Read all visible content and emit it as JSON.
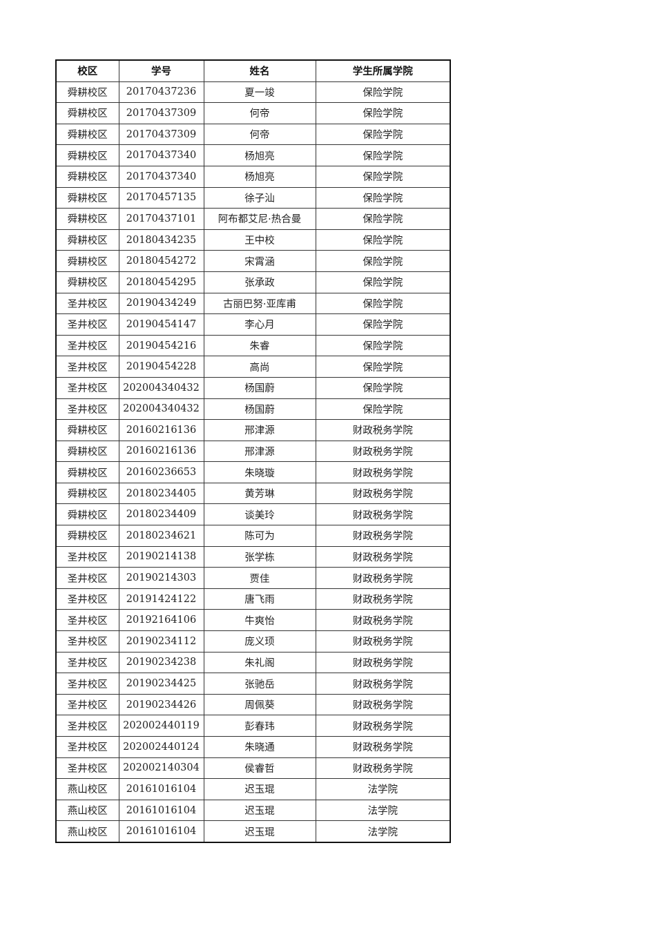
{
  "table": {
    "headers": [
      "校区",
      "学号",
      "姓名",
      "学生所属学院"
    ],
    "rows": [
      [
        "舜耕校区",
        "20170437236",
        "夏一竣",
        "保险学院"
      ],
      [
        "舜耕校区",
        "20170437309",
        "何帝",
        "保险学院"
      ],
      [
        "舜耕校区",
        "20170437309",
        "何帝",
        "保险学院"
      ],
      [
        "舜耕校区",
        "20170437340",
        "杨旭亮",
        "保险学院"
      ],
      [
        "舜耕校区",
        "20170437340",
        "杨旭亮",
        "保险学院"
      ],
      [
        "舜耕校区",
        "20170457135",
        "徐子汕",
        "保险学院"
      ],
      [
        "舜耕校区",
        "20170437101",
        "阿布都艾尼·热合曼",
        "保险学院"
      ],
      [
        "舜耕校区",
        "20180434235",
        "王中校",
        "保险学院"
      ],
      [
        "舜耕校区",
        "20180454272",
        "宋霄涵",
        "保险学院"
      ],
      [
        "舜耕校区",
        "20180454295",
        "张承政",
        "保险学院"
      ],
      [
        "圣井校区",
        "20190434249",
        "古丽巴努·亚库甫",
        "保险学院"
      ],
      [
        "圣井校区",
        "20190454147",
        "李心月",
        "保险学院"
      ],
      [
        "圣井校区",
        "20190454216",
        "朱睿",
        "保险学院"
      ],
      [
        "圣井校区",
        "20190454228",
        "高尚",
        "保险学院"
      ],
      [
        "圣井校区",
        "202004340432",
        "杨国蔚",
        "保险学院"
      ],
      [
        "圣井校区",
        "202004340432",
        "杨国蔚",
        "保险学院"
      ],
      [
        "舜耕校区",
        "20160216136",
        "邢津源",
        "财政税务学院"
      ],
      [
        "舜耕校区",
        "20160216136",
        "邢津源",
        "财政税务学院"
      ],
      [
        "舜耕校区",
        "20160236653",
        "朱晓璇",
        "财政税务学院"
      ],
      [
        "舜耕校区",
        "20180234405",
        "黄芳琳",
        "财政税务学院"
      ],
      [
        "舜耕校区",
        "20180234409",
        "谈美玲",
        "财政税务学院"
      ],
      [
        "舜耕校区",
        "20180234621",
        "陈可为",
        "财政税务学院"
      ],
      [
        "圣井校区",
        "20190214138",
        "张学栋",
        "财政税务学院"
      ],
      [
        "圣井校区",
        "20190214303",
        "贾佳",
        "财政税务学院"
      ],
      [
        "圣井校区",
        "20191424122",
        "唐飞雨",
        "财政税务学院"
      ],
      [
        "圣井校区",
        "20192164106",
        "牛爽怡",
        "财政税务学院"
      ],
      [
        "圣井校区",
        "20190234112",
        "庞义顼",
        "财政税务学院"
      ],
      [
        "圣井校区",
        "20190234238",
        "朱礼阁",
        "财政税务学院"
      ],
      [
        "圣井校区",
        "20190234425",
        "张驰岳",
        "财政税务学院"
      ],
      [
        "圣井校区",
        "20190234426",
        "周佩葵",
        "财政税务学院"
      ],
      [
        "圣井校区",
        "202002440119",
        "彭春玮",
        "财政税务学院"
      ],
      [
        "圣井校区",
        "202002440124",
        "朱晓通",
        "财政税务学院"
      ],
      [
        "圣井校区",
        "202002140304",
        "侯睿哲",
        "财政税务学院"
      ],
      [
        "燕山校区",
        "20161016104",
        "迟玉琨",
        "法学院"
      ],
      [
        "燕山校区",
        "20161016104",
        "迟玉琨",
        "法学院"
      ],
      [
        "燕山校区",
        "20161016104",
        "迟玉琨",
        "法学院"
      ]
    ]
  }
}
